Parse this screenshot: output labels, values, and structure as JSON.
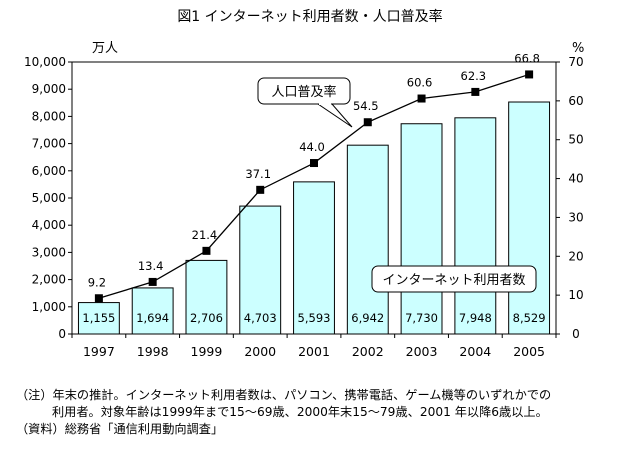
{
  "title": "図1 インターネット利用者数・人口普及率",
  "chart_data": {
    "type": "bar",
    "categories": [
      "1997",
      "1998",
      "1999",
      "2000",
      "2001",
      "2002",
      "2003",
      "2004",
      "2005"
    ],
    "series": [
      {
        "name": "インターネット利用者数",
        "type": "bar",
        "axis": "left",
        "values": [
          1155,
          1694,
          2706,
          4703,
          5593,
          6942,
          7730,
          7948,
          8529
        ],
        "labels": [
          "1,155",
          "1,694",
          "2,706",
          "4,703",
          "5,593",
          "6,942",
          "7,730",
          "7,948",
          "8,529"
        ],
        "color": "#ccffff"
      },
      {
        "name": "人口普及率",
        "type": "line",
        "axis": "right",
        "values": [
          9.2,
          13.4,
          21.4,
          37.1,
          44.0,
          54.5,
          60.6,
          62.3,
          66.8
        ],
        "labels": [
          "9.2",
          "13.4",
          "21.4",
          "37.1",
          "44.0",
          "54.5",
          "60.6",
          "62.3",
          "66.8"
        ],
        "color": "#000000"
      }
    ],
    "ylabel_left": "万人",
    "ylabel_right": "%",
    "ylim_left": [
      0,
      10000
    ],
    "ylim_right": [
      0,
      70
    ],
    "yticks_left": [
      "0",
      "1,000",
      "2,000",
      "3,000",
      "4,000",
      "5,000",
      "6,000",
      "7,000",
      "8,000",
      "9,000",
      "10,000"
    ],
    "yticks_right": [
      "0",
      "10",
      "20",
      "30",
      "40",
      "50",
      "60",
      "70"
    ],
    "grid": false,
    "legend": "callouts"
  },
  "notes": [
    "（注）年末の推計。インターネット利用者数は、パソコン、携帯電話、ゲーム機等のいずれかでの",
    "利用者。対象年齢は1999年まで15〜69歳、2000年末15〜79歳、2001 年以降6歳以上。",
    "（資料）総務省「通信利用動向調査」"
  ]
}
